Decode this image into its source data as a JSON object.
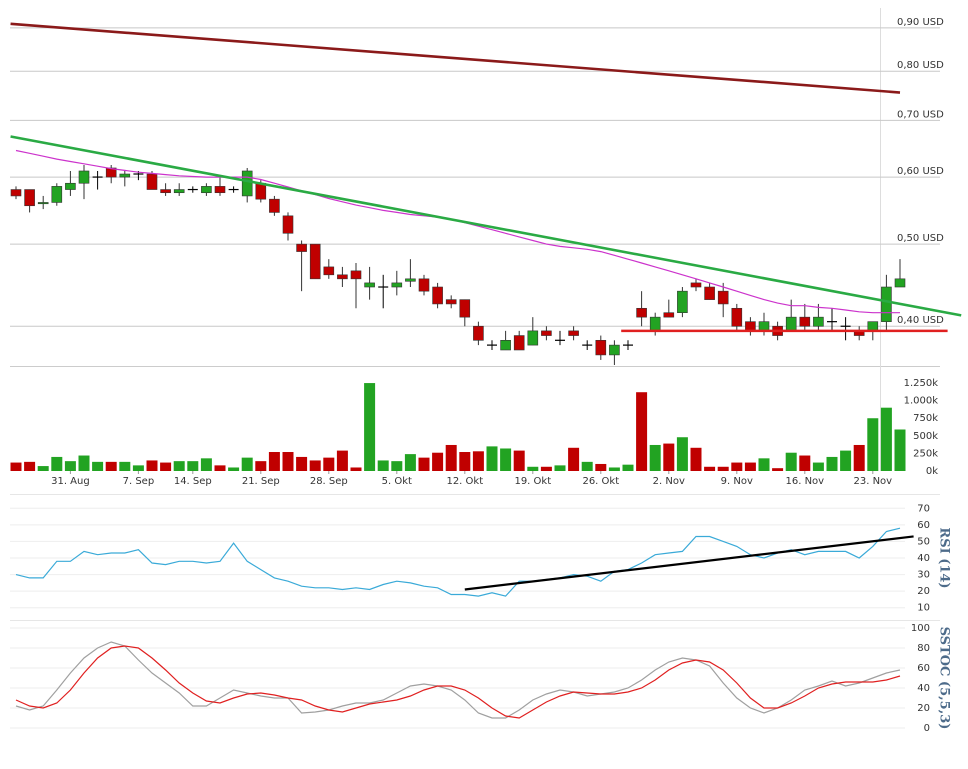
{
  "chart_data": [
    {
      "type": "candlestick",
      "categories": [
        null,
        null,
        null,
        null,
        "31. Aug",
        null,
        null,
        null,
        null,
        "7. Sep",
        null,
        null,
        null,
        "14. Sep",
        null,
        null,
        null,
        null,
        "21. Sep",
        null,
        null,
        null,
        null,
        "28. Sep",
        null,
        null,
        null,
        null,
        "5. Okt",
        null,
        null,
        null,
        null,
        "12. Okt",
        null,
        null,
        null,
        null,
        "19. Okt",
        null,
        null,
        null,
        null,
        "26. Okt",
        null,
        null,
        null,
        null,
        "2. Nov",
        null,
        null,
        null,
        null,
        "9. Nov",
        null,
        null,
        null,
        null,
        "16. Nov",
        null,
        null,
        null,
        null,
        "23. Nov",
        null,
        null
      ],
      "open": [
        0.58,
        0.58,
        0.558,
        0.56,
        0.58,
        0.59,
        0.6,
        0.615,
        0.6,
        0.605,
        0.605,
        0.58,
        0.575,
        0.58,
        0.575,
        0.585,
        0.58,
        0.57,
        0.59,
        0.565,
        0.54,
        0.5,
        0.5,
        0.47,
        0.46,
        0.465,
        0.445,
        0.445,
        0.445,
        0.452,
        0.455,
        0.445,
        0.43,
        0.43,
        0.4,
        0.38,
        0.375,
        0.39,
        0.38,
        0.395,
        0.385,
        0.395,
        0.38,
        0.385,
        0.37,
        0.38,
        0.42,
        0.395,
        0.415,
        0.415,
        0.45,
        0.445,
        0.44,
        0.42,
        0.405,
        0.395,
        0.4,
        0.395,
        0.41,
        0.4,
        0.405,
        0.4,
        0.395,
        0.395,
        0.405,
        0.445
      ],
      "high": [
        0.585,
        0.58,
        0.57,
        0.59,
        0.61,
        0.62,
        0.61,
        0.62,
        0.61,
        0.61,
        0.61,
        0.59,
        0.59,
        0.585,
        0.59,
        0.6,
        0.585,
        0.615,
        0.595,
        0.57,
        0.545,
        0.505,
        0.5,
        0.48,
        0.47,
        0.475,
        0.47,
        0.46,
        0.465,
        0.48,
        0.46,
        0.45,
        0.435,
        0.43,
        0.405,
        0.385,
        0.395,
        0.395,
        0.41,
        0.4,
        0.395,
        0.4,
        0.385,
        0.39,
        0.385,
        0.385,
        0.44,
        0.415,
        0.43,
        0.445,
        0.455,
        0.45,
        0.45,
        0.425,
        0.41,
        0.415,
        0.405,
        0.43,
        0.425,
        0.425,
        0.42,
        0.41,
        0.4,
        0.405,
        0.46,
        0.48
      ],
      "low": [
        0.565,
        0.545,
        0.55,
        0.555,
        0.57,
        0.565,
        0.58,
        0.59,
        0.585,
        0.595,
        0.58,
        0.57,
        0.57,
        0.575,
        0.57,
        0.57,
        0.575,
        0.56,
        0.56,
        0.54,
        0.505,
        0.44,
        0.455,
        0.455,
        0.445,
        0.42,
        0.43,
        0.42,
        0.435,
        0.445,
        0.435,
        0.42,
        0.42,
        0.4,
        0.38,
        0.375,
        0.375,
        0.375,
        0.38,
        0.385,
        0.38,
        0.385,
        0.375,
        0.365,
        0.36,
        0.375,
        0.4,
        0.39,
        0.41,
        0.41,
        0.44,
        0.43,
        0.41,
        0.395,
        0.39,
        0.39,
        0.385,
        0.395,
        0.395,
        0.395,
        0.395,
        0.385,
        0.385,
        0.385,
        0.395,
        0.445
      ],
      "close": [
        0.57,
        0.555,
        0.56,
        0.585,
        0.59,
        0.61,
        0.6,
        0.6,
        0.605,
        0.605,
        0.58,
        0.575,
        0.58,
        0.58,
        0.585,
        0.575,
        0.58,
        0.61,
        0.565,
        0.545,
        0.515,
        0.49,
        0.455,
        0.46,
        0.455,
        0.455,
        0.45,
        0.445,
        0.45,
        0.455,
        0.44,
        0.425,
        0.425,
        0.41,
        0.385,
        0.38,
        0.385,
        0.375,
        0.395,
        0.39,
        0.385,
        0.39,
        0.38,
        0.37,
        0.38,
        0.38,
        0.41,
        0.41,
        0.41,
        0.44,
        0.445,
        0.43,
        0.425,
        0.4,
        0.395,
        0.405,
        0.39,
        0.41,
        0.4,
        0.41,
        0.405,
        0.4,
        0.39,
        0.405,
        0.445,
        0.455
      ],
      "up_color": "#22a322",
      "down_color": "#c00000",
      "flat_color": "#000000",
      "log_scale": true,
      "ylim": [
        0.36,
        0.95
      ],
      "yticks": [
        {
          "value": 0.4,
          "label": "0,40 USD"
        },
        {
          "value": 0.5,
          "label": "0,50 USD"
        },
        {
          "value": 0.6,
          "label": "0,60 USD"
        },
        {
          "value": 0.7,
          "label": "0,70 USD"
        },
        {
          "value": 0.8,
          "label": "0,80 USD"
        },
        {
          "value": 0.9,
          "label": "0,90 USD"
        }
      ],
      "grid": true,
      "overlays": [
        {
          "color": "#cc33cc",
          "values": [
            0.645,
            0.64,
            0.635,
            0.63,
            0.626,
            0.622,
            0.618,
            0.614,
            0.611,
            0.608,
            0.606,
            0.604,
            0.602,
            0.601,
            0.6,
            0.6,
            0.6,
            0.6,
            0.596,
            0.59,
            0.584,
            0.578,
            0.572,
            0.566,
            0.561,
            0.556,
            0.552,
            0.548,
            0.545,
            0.542,
            0.54,
            0.538,
            0.535,
            0.53,
            0.525,
            0.52,
            0.515,
            0.51,
            0.505,
            0.5,
            0.497,
            0.495,
            0.493,
            0.49,
            0.485,
            0.48,
            0.475,
            0.47,
            0.465,
            0.46,
            0.455,
            0.45,
            0.445,
            0.44,
            0.435,
            0.43,
            0.426,
            0.423,
            0.423,
            0.421,
            0.42,
            0.418,
            0.416,
            0.415,
            0.415,
            0.415
          ]
        }
      ],
      "trendlines": [
        {
          "color": "#8b1a1a",
          "points": [
            [
              -0.4,
              0.91
            ],
            [
              65,
              0.755
            ]
          ]
        },
        {
          "color": "#2aaa44",
          "points": [
            [
              -0.4,
              0.67
            ],
            [
              69.5,
              0.412
            ]
          ]
        },
        {
          "color": "#e02020",
          "points": [
            [
              44.5,
              0.395
            ],
            [
              68.5,
              0.395
            ]
          ]
        }
      ]
    },
    {
      "type": "bar",
      "values": [
        120,
        130,
        70,
        200,
        140,
        220,
        130,
        130,
        130,
        80,
        150,
        120,
        140,
        140,
        180,
        80,
        50,
        190,
        140,
        270,
        270,
        200,
        150,
        190,
        290,
        50,
        1250,
        150,
        140,
        240,
        190,
        260,
        370,
        270,
        280,
        350,
        320,
        290,
        60,
        60,
        80,
        330,
        130,
        100,
        50,
        90,
        1120,
        370,
        390,
        480,
        330,
        60,
        60,
        120,
        120,
        180,
        40,
        260,
        220,
        120,
        200,
        290,
        370,
        750,
        900,
        590
      ],
      "ylim": [
        0,
        1450
      ],
      "yticks": [
        {
          "value": 0,
          "label": "0k"
        },
        {
          "value": 250,
          "label": "250k"
        },
        {
          "value": 500,
          "label": "500k"
        },
        {
          "value": 750,
          "label": "750k"
        },
        {
          "value": 1000,
          "label": "1.000k"
        },
        {
          "value": 1250,
          "label": "1.250k"
        }
      ]
    },
    {
      "type": "line",
      "y_label": "RSI (14)",
      "series": [
        {
          "color": "#3aaad8",
          "values": [
            30,
            28,
            28,
            38,
            38,
            44,
            42,
            43,
            43,
            45,
            37,
            36,
            38,
            38,
            37,
            38,
            49,
            38,
            33,
            28,
            26,
            23,
            22,
            22,
            21,
            22,
            21,
            24,
            26,
            25,
            23,
            22,
            18,
            18,
            17,
            19,
            17,
            26,
            26,
            27,
            28,
            30,
            29,
            26,
            32,
            33,
            37,
            42,
            43,
            44,
            53,
            53,
            50,
            47,
            42,
            40,
            43,
            45,
            42,
            44,
            44,
            44,
            40,
            47,
            56,
            58
          ]
        }
      ],
      "ylim": [
        5,
        75
      ],
      "yticks": [
        10,
        20,
        30,
        40,
        50,
        60,
        70
      ],
      "grid": true,
      "trendlines": [
        {
          "color": "#000000",
          "points": [
            [
              33,
              21
            ],
            [
              66,
              53
            ]
          ]
        }
      ]
    },
    {
      "type": "line",
      "y_label": "SSTOC (5,5,3)",
      "series": [
        {
          "color": "#a0a0a0",
          "values": [
            22,
            18,
            22,
            38,
            55,
            70,
            80,
            86,
            82,
            68,
            55,
            45,
            35,
            22,
            22,
            30,
            38,
            35,
            32,
            30,
            30,
            15,
            16,
            18,
            22,
            25,
            25,
            28,
            35,
            42,
            44,
            42,
            38,
            28,
            15,
            10,
            10,
            18,
            28,
            34,
            38,
            36,
            32,
            34,
            36,
            40,
            48,
            58,
            66,
            70,
            68,
            62,
            45,
            30,
            20,
            15,
            20,
            28,
            38,
            42,
            47,
            42,
            45,
            50,
            55,
            58
          ]
        },
        {
          "color": "#e02020",
          "values": [
            28,
            22,
            20,
            25,
            38,
            55,
            70,
            80,
            82,
            80,
            70,
            58,
            45,
            35,
            27,
            25,
            30,
            34,
            35,
            33,
            30,
            28,
            22,
            18,
            16,
            20,
            24,
            26,
            28,
            32,
            38,
            42,
            42,
            38,
            30,
            20,
            12,
            10,
            18,
            26,
            32,
            36,
            35,
            34,
            34,
            36,
            40,
            48,
            58,
            65,
            68,
            66,
            58,
            45,
            30,
            20,
            20,
            25,
            32,
            40,
            44,
            46,
            46,
            46,
            48,
            52
          ]
        }
      ],
      "ylim": [
        0,
        100
      ],
      "yticks": [
        0,
        20,
        40,
        60,
        80,
        100
      ],
      "grid": true
    }
  ]
}
